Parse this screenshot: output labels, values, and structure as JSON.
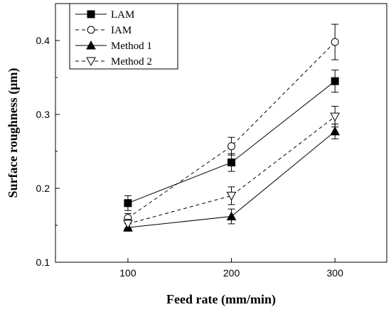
{
  "chart_data": {
    "type": "line",
    "xlabel": "Feed rate (mm/min)",
    "ylabel": "Surface roughness (μm)",
    "x": [
      100,
      200,
      300
    ],
    "xticks": [
      100,
      200,
      300
    ],
    "yticks": [
      0.1,
      0.2,
      0.3,
      0.4
    ],
    "ytick_labels": [
      "0.1",
      "0.2",
      "0.3",
      "0.4"
    ],
    "xlim": [
      30,
      350
    ],
    "ylim": [
      0.1,
      0.45
    ],
    "legend_position": "top-left",
    "grid": false,
    "series": [
      {
        "name": "LAM",
        "values": [
          0.18,
          0.235,
          0.345
        ],
        "errors": [
          0.01,
          0.012,
          0.015
        ],
        "marker": "square-filled",
        "line": "solid",
        "color": "#000000"
      },
      {
        "name": "IAM",
        "values": [
          0.16,
          0.257,
          0.398
        ],
        "errors": [
          0.006,
          0.012,
          0.024
        ],
        "marker": "circle-open",
        "line": "dashed",
        "color": "#000000"
      },
      {
        "name": "Method 1",
        "values": [
          0.147,
          0.162,
          0.277
        ],
        "errors": [
          0.005,
          0.01,
          0.01
        ],
        "marker": "triangle-up-filled",
        "line": "solid",
        "color": "#000000"
      },
      {
        "name": "Method 2",
        "values": [
          0.152,
          0.19,
          0.297
        ],
        "errors": [
          0.006,
          0.012,
          0.014
        ],
        "marker": "triangle-down-open",
        "line": "dashed",
        "color": "#000000"
      }
    ]
  }
}
